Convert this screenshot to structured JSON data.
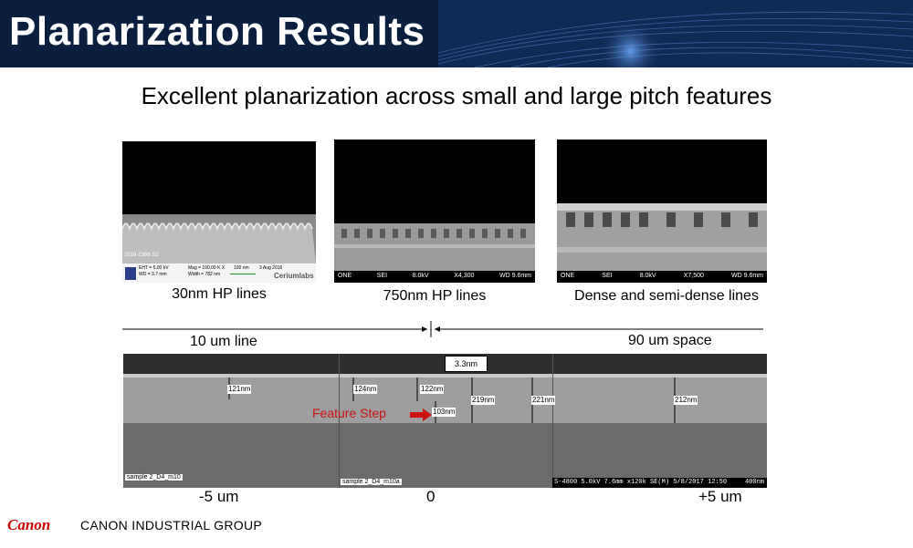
{
  "header": {
    "title": "Planarization Results"
  },
  "subtitle": "Excellent planarization across small and large pitch features",
  "top_images": [
    {
      "caption": "30nm HP lines",
      "info": [
        "EHT = 5.00 kV",
        "Mag = 100.00 K X",
        "WD = 3.7 mm",
        "Width = 782 nm",
        "100 nm",
        "3 Aug 2016"
      ],
      "id_label": "2016-2366 S2",
      "brand": "Ceriumlabs"
    },
    {
      "caption": "750nm HP lines",
      "bar": [
        "ONE",
        "SEI",
        "8.0kV",
        "X4,300",
        "WD 9.6mm"
      ]
    },
    {
      "caption": "Dense and semi-dense lines",
      "bar": [
        "ONE",
        "SEI",
        "8.0kV",
        "X7,500",
        "WD 9.6mm"
      ]
    }
  ],
  "dimension": {
    "left": "10 um line",
    "right": "90 um space"
  },
  "bottom": {
    "measurements": [
      "121nm",
      "124nm",
      "122nm",
      "3.3nm",
      "103nm",
      "219nm",
      "221nm",
      "212nm"
    ],
    "feature_step": "Feature Step",
    "sample_labels": [
      "sample 2_D4_m10",
      "sample 2_D4_m10a"
    ],
    "scale_info": "S-4800 5.0kV 7.6mm x120k SE(M) 5/8/2017 12:50",
    "scale_value": "400nm",
    "axis": [
      "-5 um",
      "0",
      "+5 um"
    ]
  },
  "footer": {
    "logo": "Canon",
    "text": "CANON INDUSTRIAL GROUP"
  }
}
